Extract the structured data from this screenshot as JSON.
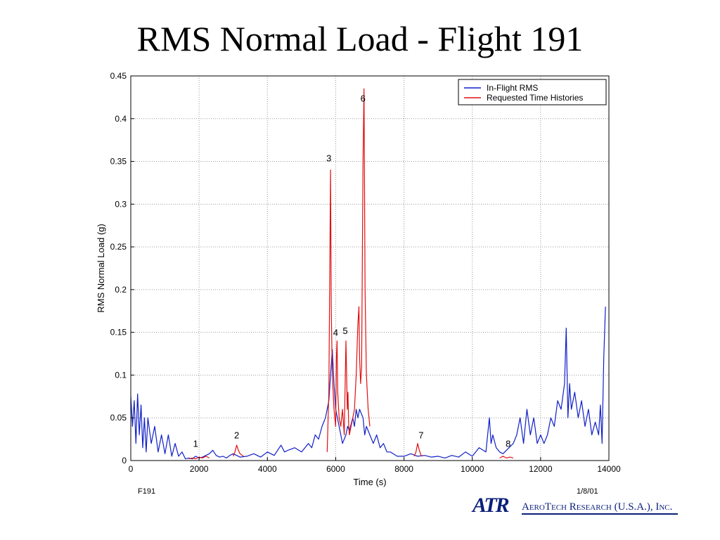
{
  "slide": {
    "title": "RMS Normal Load - Flight 191"
  },
  "logo": {
    "mark": "ATR",
    "company": "AeroTech Research (U.S.A.), Inc."
  },
  "footer": {
    "left": "F191",
    "right": "1/8/01"
  },
  "colors": {
    "inflight": "#1020c8",
    "requested": "#e01010",
    "grid": "#9a9a9a",
    "axis": "#000000"
  },
  "chart_data": {
    "type": "line",
    "title": "",
    "xlabel": "Time (s)",
    "ylabel": "RMS Normal Load (g)",
    "xlim": [
      0,
      14000
    ],
    "ylim": [
      0,
      0.45
    ],
    "xticks": [
      0,
      2000,
      4000,
      6000,
      8000,
      10000,
      12000,
      14000
    ],
    "yticks": [
      0,
      0.05,
      0.1,
      0.15,
      0.2,
      0.25,
      0.3,
      0.35,
      0.4,
      0.45
    ],
    "grid": true,
    "legend_position": "top-right",
    "series": [
      {
        "name": "In-Flight RMS",
        "x": [
          0,
          50,
          100,
          150,
          200,
          250,
          300,
          350,
          400,
          450,
          500,
          600,
          700,
          800,
          900,
          1000,
          1100,
          1200,
          1300,
          1400,
          1500,
          1600,
          1700,
          1800,
          1900,
          2000,
          2100,
          2200,
          2300,
          2400,
          2500,
          2600,
          2700,
          2800,
          2900,
          3000,
          3200,
          3400,
          3600,
          3800,
          4000,
          4200,
          4400,
          4500,
          4600,
          4800,
          5000,
          5200,
          5300,
          5400,
          5500,
          5600,
          5700,
          5800,
          5850,
          5900,
          5950,
          6000,
          6100,
          6150,
          6200,
          6300,
          6350,
          6400,
          6500,
          6550,
          6600,
          6650,
          6700,
          6800,
          6850,
          6900,
          7000,
          7100,
          7200,
          7300,
          7400,
          7500,
          7600,
          7800,
          8000,
          8200,
          8400,
          8600,
          8800,
          9000,
          9200,
          9400,
          9600,
          9800,
          10000,
          10200,
          10400,
          10500,
          10550,
          10600,
          10700,
          10800,
          10900,
          11000,
          11200,
          11300,
          11400,
          11500,
          11600,
          11700,
          11800,
          11900,
          12000,
          12100,
          12200,
          12300,
          12400,
          12500,
          12600,
          12700,
          12750,
          12800,
          12850,
          12900,
          13000,
          13100,
          13200,
          13300,
          13400,
          13500,
          13600,
          13700,
          13750,
          13800,
          13850,
          13900
        ],
        "y": [
          0.075,
          0.04,
          0.07,
          0.02,
          0.078,
          0.03,
          0.065,
          0.015,
          0.05,
          0.01,
          0.05,
          0.02,
          0.04,
          0.01,
          0.03,
          0.008,
          0.03,
          0.005,
          0.02,
          0.005,
          0.01,
          0.002,
          0.003,
          0.002,
          0.005,
          0.003,
          0.004,
          0.006,
          0.008,
          0.012,
          0.006,
          0.004,
          0.005,
          0.003,
          0.006,
          0.008,
          0.004,
          0.005,
          0.008,
          0.004,
          0.01,
          0.006,
          0.018,
          0.01,
          0.012,
          0.015,
          0.01,
          0.02,
          0.015,
          0.03,
          0.025,
          0.04,
          0.05,
          0.07,
          0.1,
          0.13,
          0.09,
          0.06,
          0.04,
          0.03,
          0.02,
          0.03,
          0.04,
          0.035,
          0.05,
          0.04,
          0.06,
          0.05,
          0.06,
          0.05,
          0.03,
          0.04,
          0.03,
          0.02,
          0.03,
          0.015,
          0.02,
          0.01,
          0.01,
          0.005,
          0.005,
          0.008,
          0.005,
          0.006,
          0.004,
          0.005,
          0.003,
          0.006,
          0.004,
          0.01,
          0.005,
          0.015,
          0.01,
          0.05,
          0.02,
          0.03,
          0.015,
          0.01,
          0.008,
          0.012,
          0.02,
          0.03,
          0.05,
          0.02,
          0.06,
          0.03,
          0.05,
          0.02,
          0.03,
          0.02,
          0.03,
          0.05,
          0.04,
          0.07,
          0.06,
          0.09,
          0.155,
          0.05,
          0.09,
          0.06,
          0.08,
          0.05,
          0.07,
          0.04,
          0.06,
          0.03,
          0.045,
          0.03,
          0.065,
          0.02,
          0.12,
          0.18
        ]
      },
      {
        "name": "Requested Time Histories",
        "x": [
          1700,
          1800,
          1900,
          2000,
          2100,
          2200,
          2300,
          3000,
          3050,
          3100,
          3150,
          3200,
          3300,
          5750,
          5800,
          5830,
          5850,
          5870,
          5900,
          5950,
          6000,
          6020,
          6040,
          6060,
          6100,
          6150,
          6200,
          6250,
          6300,
          6320,
          6340,
          6360,
          6380,
          6400,
          6550,
          6600,
          6650,
          6680,
          6700,
          6730,
          6760,
          6800,
          6830,
          6860,
          6900,
          6950,
          7000,
          8300,
          8350,
          8400,
          8450,
          8500,
          8550,
          10800,
          10900,
          11000,
          11100,
          11200
        ],
        "y": [
          0.002,
          0.003,
          0.002,
          0.004,
          0.003,
          0.005,
          0.003,
          0.005,
          0.01,
          0.018,
          0.012,
          0.008,
          0.005,
          0.01,
          0.08,
          0.24,
          0.34,
          0.18,
          0.1,
          0.06,
          0.04,
          0.12,
          0.14,
          0.08,
          0.05,
          0.04,
          0.06,
          0.03,
          0.14,
          0.1,
          0.06,
          0.08,
          0.04,
          0.03,
          0.06,
          0.1,
          0.16,
          0.18,
          0.12,
          0.09,
          0.11,
          0.35,
          0.435,
          0.2,
          0.1,
          0.06,
          0.04,
          0.005,
          0.01,
          0.02,
          0.012,
          0.006,
          0.005,
          0.003,
          0.005,
          0.003,
          0.004,
          0.003
        ]
      }
    ],
    "annotations": [
      {
        "label": "1",
        "x": 1900,
        "y": 0.016
      },
      {
        "label": "2",
        "x": 3100,
        "y": 0.026
      },
      {
        "label": "3",
        "x": 5800,
        "y": 0.35
      },
      {
        "label": "4",
        "x": 6000,
        "y": 0.146
      },
      {
        "label": "5",
        "x": 6280,
        "y": 0.148
      },
      {
        "label": "6",
        "x": 6800,
        "y": 0.42
      },
      {
        "label": "7",
        "x": 8500,
        "y": 0.026
      },
      {
        "label": "8",
        "x": 11050,
        "y": 0.016
      }
    ]
  }
}
